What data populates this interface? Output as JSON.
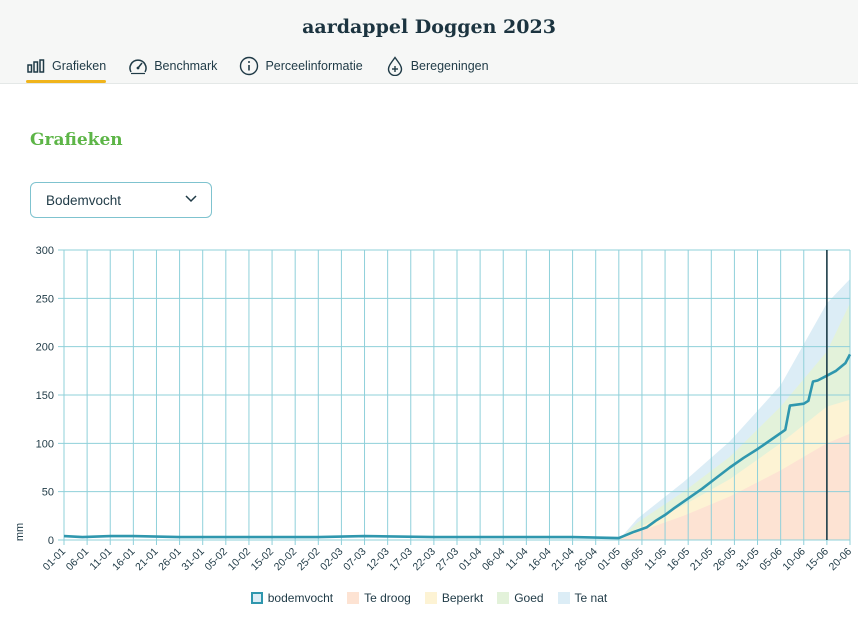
{
  "header": {
    "title": "aardappel Doggen 2023",
    "tabs": [
      {
        "label": "Grafieken",
        "icon": "bar-chart-icon",
        "active": true
      },
      {
        "label": "Benchmark",
        "icon": "gauge-icon",
        "active": false
      },
      {
        "label": "Perceelinformatie",
        "icon": "info-icon",
        "active": false
      },
      {
        "label": "Beregeningen",
        "icon": "water-drop-plus-icon",
        "active": false
      }
    ]
  },
  "main": {
    "section_title": "Grafieken",
    "select": {
      "value": "Bodemvocht",
      "icon": "chevron-down-icon"
    }
  },
  "colors": {
    "line": "#2f97ae",
    "grid": "#8fd0da",
    "te_droog": "#fde3d3",
    "beperkt": "#fdf3d4",
    "goed": "#e3f2da",
    "te_nat": "#dcedf6",
    "marker": "#1d3d48",
    "accent_tab": "#f0b41c",
    "section_title": "#5db547"
  },
  "chart_data": {
    "type": "area",
    "title": "",
    "xlabel": "",
    "ylabel": "mm",
    "ylim": [
      0,
      300
    ],
    "yticks": [
      0,
      50,
      100,
      150,
      200,
      250,
      300
    ],
    "x_range": [
      "01-01",
      "20-06"
    ],
    "x_ticks": [
      "01-01",
      "06-01",
      "11-01",
      "16-01",
      "21-01",
      "26-01",
      "31-01",
      "05-02",
      "10-02",
      "15-02",
      "20-02",
      "25-02",
      "02-03",
      "07-03",
      "12-03",
      "17-03",
      "22-03",
      "27-03",
      "01-04",
      "06-04",
      "11-04",
      "16-04",
      "21-04",
      "26-04",
      "01-05",
      "06-05",
      "11-05",
      "16-05",
      "21-05",
      "26-05",
      "31-05",
      "05-06",
      "10-06",
      "15-06",
      "20-06"
    ],
    "grid": true,
    "legend_position": "bottom",
    "marker_line_x": "15-06",
    "bands": [
      {
        "name": "Te droog",
        "x": [
          "01-05",
          "05-05",
          "15-05",
          "25-05",
          "05-06",
          "15-06",
          "20-06"
        ],
        "upper": [
          0,
          8,
          25,
          45,
          72,
          100,
          110
        ]
      },
      {
        "name": "Beperkt",
        "x": [
          "01-05",
          "05-05",
          "15-05",
          "25-05",
          "05-06",
          "15-06",
          "20-06"
        ],
        "upper": [
          0,
          12,
          36,
          63,
          100,
          138,
          145
        ]
      },
      {
        "name": "Goed",
        "x": [
          "01-05",
          "05-05",
          "15-05",
          "25-05",
          "05-06",
          "15-06",
          "20-06"
        ],
        "upper": [
          0,
          18,
          50,
          86,
          138,
          195,
          245
        ]
      },
      {
        "name": "Te nat",
        "x": [
          "01-05",
          "05-05",
          "15-05",
          "25-05",
          "05-06",
          "15-06",
          "20-06"
        ],
        "upper": [
          0,
          22,
          60,
          102,
          160,
          245,
          270
        ]
      }
    ],
    "series": [
      {
        "name": "bodemvocht",
        "x": [
          "01-01",
          "05-01",
          "11-01",
          "16-01",
          "26-01",
          "10-02",
          "25-02",
          "07-03",
          "22-03",
          "06-04",
          "21-04",
          "01-05",
          "04-05",
          "07-05",
          "09-05",
          "11-05",
          "13-05",
          "16-05",
          "19-05",
          "22-05",
          "25-05",
          "28-05",
          "31-05",
          "03-06",
          "06-06",
          "07-06",
          "10-06",
          "11-06",
          "12-06",
          "13-06",
          "15-06",
          "17-06",
          "19-06",
          "20-06"
        ],
        "y": [
          4,
          3,
          4,
          4,
          3,
          3,
          3,
          4,
          3,
          3,
          3,
          2,
          8,
          13,
          20,
          26,
          33,
          43,
          53,
          64,
          75,
          85,
          94,
          104,
          114,
          139,
          141,
          144,
          164,
          165,
          170,
          175,
          183,
          192
        ]
      }
    ]
  },
  "legend": [
    {
      "label": "bodemvocht",
      "key": "line"
    },
    {
      "label": "Te droog",
      "key": "te_droog"
    },
    {
      "label": "Beperkt",
      "key": "beperkt"
    },
    {
      "label": "Goed",
      "key": "goed"
    },
    {
      "label": "Te nat",
      "key": "te_nat"
    }
  ]
}
